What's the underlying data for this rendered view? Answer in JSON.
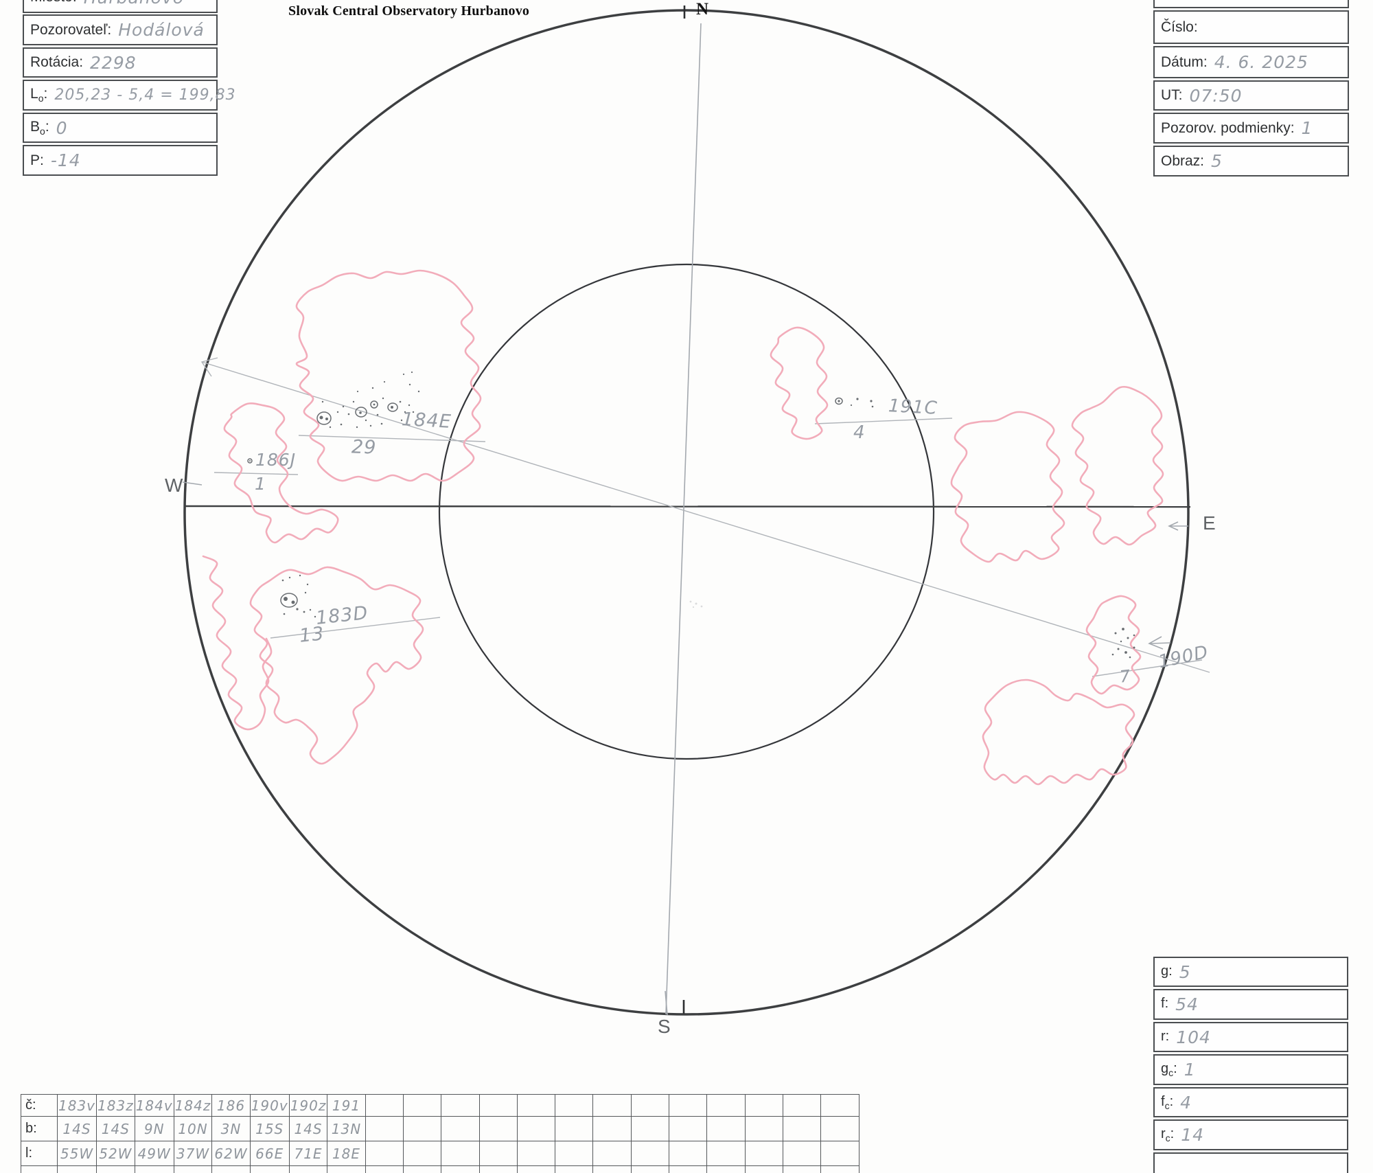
{
  "title": "Slovak Central Observatory Hurbanovo",
  "colors": {
    "pink": "#f2acba",
    "pencil": "#9aa0a7",
    "spot": "#686c70",
    "line": "#3d3f41"
  },
  "compass": {
    "n": "N",
    "s": "S",
    "e": "E",
    "w": "W"
  },
  "info_left": {
    "fields": [
      {
        "label": "Miesto:",
        "sub": "",
        "colon": "",
        "value": "Hurbanovo"
      },
      {
        "label": "Pozorovateľ:",
        "sub": "",
        "colon": "",
        "value": "Hodálová"
      },
      {
        "label": "Rotácia:",
        "sub": "",
        "colon": "",
        "value": "2298"
      },
      {
        "label": "L",
        "sub": "o",
        "colon": ":",
        "value": "205,23 - 5,4 = 199,83"
      },
      {
        "label": "B",
        "sub": "o",
        "colon": ":",
        "value": "0"
      },
      {
        "label": "P:",
        "sub": "",
        "colon": "",
        "value": "-14"
      }
    ]
  },
  "info_right": {
    "fields": [
      {
        "label": "Číslo:",
        "value": ""
      },
      {
        "label": "Dátum:",
        "value": "4. 6. 2025"
      },
      {
        "label": "UT:",
        "value": "07:50"
      },
      {
        "label": "Pozorov. podmienky:",
        "value": "1"
      },
      {
        "label": "Obraz:",
        "value": "5"
      }
    ]
  },
  "stats": {
    "fields": [
      {
        "label": "g",
        "sub": "",
        "colon": ":",
        "value": "5"
      },
      {
        "label": "f",
        "sub": "",
        "colon": ":",
        "value": "54"
      },
      {
        "label": "r",
        "sub": "",
        "colon": ":",
        "value": "104"
      },
      {
        "label": "g",
        "sub": "c",
        "colon": ":",
        "value": "1"
      },
      {
        "label": "f",
        "sub": "c",
        "colon": ":",
        "value": "4"
      },
      {
        "label": "r",
        "sub": "c",
        "colon": ":",
        "value": "14"
      }
    ]
  },
  "groups_table": {
    "row_labels": [
      "č:",
      "b:",
      "l:"
    ],
    "columns_total": 21,
    "rows": [
      [
        "183v",
        "183z",
        "184v",
        "184z",
        "186",
        "190v",
        "190z",
        "191"
      ],
      [
        "14S",
        "14S",
        "9N",
        "10N",
        "3N",
        "15S",
        "14S",
        "13N"
      ],
      [
        "55W",
        "52W",
        "49W",
        "37W",
        "62W",
        "66E",
        "71E",
        "18E"
      ]
    ]
  },
  "annotations": [
    {
      "id": "184E",
      "count": "29"
    },
    {
      "id": "186J",
      "count": "1"
    },
    {
      "id": "183D",
      "count": "13"
    },
    {
      "id": "191C",
      "count": "4"
    },
    {
      "id": "190D",
      "count": "7"
    }
  ]
}
